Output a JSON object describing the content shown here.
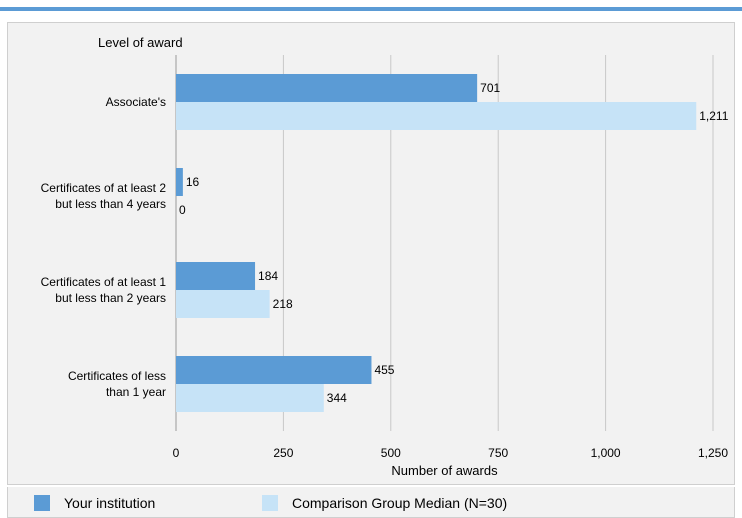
{
  "colors": {
    "accent_rule": "#5b9bd5",
    "series_1": "#5b9bd5",
    "series_2": "#c6e3f7",
    "gridline": "#c8c8c8",
    "background": "#f2f2f2"
  },
  "chart_data": {
    "type": "bar",
    "orientation": "horizontal",
    "ylabel": "Level of award",
    "xlabel": "Number of awards",
    "categories": [
      [
        "Associate's"
      ],
      [
        "Certificates of at least 2",
        "but less than 4 years"
      ],
      [
        "Certificates of at least 1",
        "but  less than 2 years"
      ],
      [
        "Certificates of less",
        "than 1 year"
      ]
    ],
    "series": [
      {
        "name": "Your institution",
        "values": [
          701,
          16,
          184,
          455
        ],
        "labels": [
          "701",
          "16",
          "184",
          "455"
        ]
      },
      {
        "name": "Comparison Group Median (N=30)",
        "values": [
          1211,
          0,
          218,
          344
        ],
        "labels": [
          "1,211",
          "0",
          "218",
          "344"
        ]
      }
    ],
    "xlim": [
      0,
      1250
    ],
    "xticks": [
      0,
      250,
      500,
      750,
      1000,
      1250
    ],
    "xtick_labels": [
      "0",
      "250",
      "500",
      "750",
      "1,000",
      "1,250"
    ],
    "grid": true,
    "legend_position": "bottom"
  }
}
